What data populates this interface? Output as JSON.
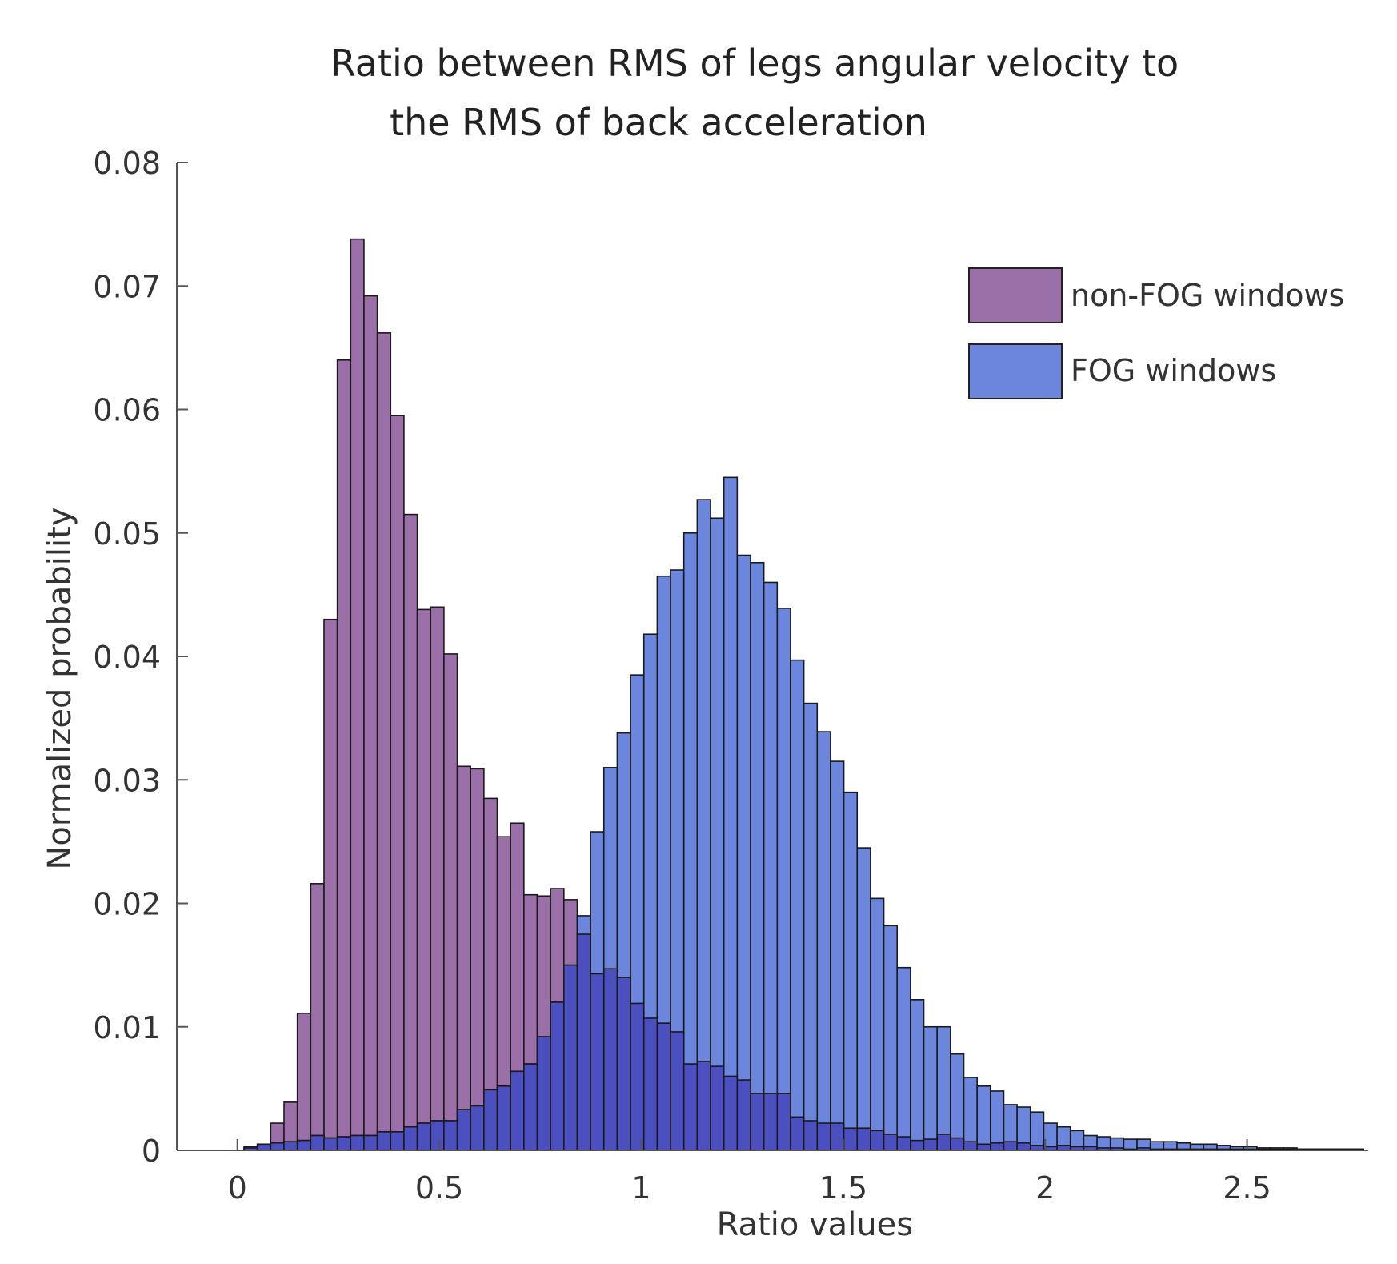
{
  "chart_data": {
    "type": "bar",
    "title": [
      "Ratio between RMS of legs angular velocity to",
      "the RMS of back acceleration"
    ],
    "xlabel": "Ratio values",
    "ylabel": "Normalized probability",
    "xlim": [
      -0.15,
      2.8
    ],
    "ylim": [
      0,
      0.08
    ],
    "xticks": [
      "0",
      "0.5",
      "1",
      "1.5",
      "2",
      "2.5"
    ],
    "yticks": [
      "0",
      "0.01",
      "0.02",
      "0.03",
      "0.04",
      "0.05",
      "0.06",
      "0.07",
      "0.08"
    ],
    "bin_width": 0.033,
    "legend": "top-right",
    "series": [
      {
        "name": "non-FOG windows",
        "color": "#9b6fa8",
        "bins": [
          [
            0.033,
            0.0002
          ],
          [
            0.066,
            0.0005
          ],
          [
            0.099,
            0.0022
          ],
          [
            0.132,
            0.0039
          ],
          [
            0.165,
            0.0111
          ],
          [
            0.198,
            0.0216
          ],
          [
            0.231,
            0.043
          ],
          [
            0.264,
            0.064
          ],
          [
            0.297,
            0.0738
          ],
          [
            0.33,
            0.0692
          ],
          [
            0.363,
            0.0662
          ],
          [
            0.396,
            0.0595
          ],
          [
            0.429,
            0.0515
          ],
          [
            0.462,
            0.0438
          ],
          [
            0.495,
            0.044
          ],
          [
            0.528,
            0.0402
          ],
          [
            0.561,
            0.0311
          ],
          [
            0.594,
            0.0309
          ],
          [
            0.627,
            0.0285
          ],
          [
            0.66,
            0.0254
          ],
          [
            0.693,
            0.0265
          ],
          [
            0.726,
            0.0207
          ],
          [
            0.759,
            0.0206
          ],
          [
            0.792,
            0.0212
          ],
          [
            0.825,
            0.0203
          ],
          [
            0.858,
            0.0175
          ],
          [
            0.891,
            0.0143
          ],
          [
            0.924,
            0.0147
          ],
          [
            0.957,
            0.014
          ],
          [
            0.99,
            0.0119
          ],
          [
            1.023,
            0.0107
          ],
          [
            1.056,
            0.0103
          ],
          [
            1.089,
            0.0096
          ],
          [
            1.122,
            0.007
          ],
          [
            1.155,
            0.0072
          ],
          [
            1.188,
            0.0068
          ],
          [
            1.221,
            0.006
          ],
          [
            1.254,
            0.0057
          ],
          [
            1.287,
            0.0046
          ],
          [
            1.32,
            0.0046
          ],
          [
            1.353,
            0.0046
          ],
          [
            1.386,
            0.0027
          ],
          [
            1.419,
            0.0024
          ],
          [
            1.452,
            0.0022
          ],
          [
            1.485,
            0.0022
          ],
          [
            1.518,
            0.0018
          ],
          [
            1.551,
            0.0018
          ],
          [
            1.584,
            0.0016
          ],
          [
            1.617,
            0.0013
          ],
          [
            1.65,
            0.0011
          ],
          [
            1.683,
            0.0008
          ],
          [
            1.716,
            0.0009
          ],
          [
            1.749,
            0.0013
          ],
          [
            1.782,
            0.001
          ],
          [
            1.815,
            0.0007
          ],
          [
            1.848,
            0.0005
          ],
          [
            1.881,
            0.0006
          ],
          [
            1.914,
            0.0007
          ],
          [
            1.947,
            0.0006
          ],
          [
            1.98,
            0.0004
          ],
          [
            2.013,
            0.0003
          ],
          [
            2.046,
            0.0004
          ],
          [
            2.079,
            0.0003
          ],
          [
            2.112,
            0.0003
          ],
          [
            2.145,
            0.0002
          ],
          [
            2.178,
            0.0002
          ],
          [
            2.211,
            0.0001
          ],
          [
            2.244,
            0.0002
          ],
          [
            2.277,
            0.0001
          ],
          [
            2.31,
            0.0001
          ],
          [
            2.343,
            0.0001
          ],
          [
            2.376,
            0.0001
          ],
          [
            2.409,
            0.0001
          ],
          [
            2.442,
            0.0001
          ],
          [
            2.475,
            0.0001
          ],
          [
            2.508,
            0.0001
          ],
          [
            2.541,
            0.0001
          ],
          [
            2.574,
            0.0001
          ],
          [
            2.607,
            0.0001
          ],
          [
            2.64,
            0.0001
          ],
          [
            2.673,
            0.0001
          ],
          [
            2.706,
            0.0001
          ],
          [
            2.739,
            0.0001
          ],
          [
            2.772,
            0.0001
          ]
        ]
      },
      {
        "name": "FOG windows",
        "color": "#6b86dc",
        "bins": [
          [
            0.033,
            0.0003
          ],
          [
            0.066,
            0.0005
          ],
          [
            0.099,
            0.0006
          ],
          [
            0.132,
            0.0007
          ],
          [
            0.165,
            0.0008
          ],
          [
            0.198,
            0.0012
          ],
          [
            0.231,
            0.001
          ],
          [
            0.264,
            0.0011
          ],
          [
            0.297,
            0.0012
          ],
          [
            0.33,
            0.0012
          ],
          [
            0.363,
            0.0015
          ],
          [
            0.396,
            0.0015
          ],
          [
            0.429,
            0.0019
          ],
          [
            0.462,
            0.0022
          ],
          [
            0.495,
            0.0024
          ],
          [
            0.528,
            0.0024
          ],
          [
            0.561,
            0.0033
          ],
          [
            0.594,
            0.0036
          ],
          [
            0.627,
            0.0049
          ],
          [
            0.66,
            0.0052
          ],
          [
            0.693,
            0.0064
          ],
          [
            0.726,
            0.007
          ],
          [
            0.759,
            0.0092
          ],
          [
            0.792,
            0.012
          ],
          [
            0.825,
            0.015
          ],
          [
            0.858,
            0.019
          ],
          [
            0.891,
            0.0258
          ],
          [
            0.924,
            0.031
          ],
          [
            0.957,
            0.0338
          ],
          [
            0.99,
            0.0385
          ],
          [
            1.023,
            0.0418
          ],
          [
            1.056,
            0.0465
          ],
          [
            1.089,
            0.047
          ],
          [
            1.122,
            0.05
          ],
          [
            1.155,
            0.0527
          ],
          [
            1.188,
            0.0512
          ],
          [
            1.221,
            0.0545
          ],
          [
            1.254,
            0.0482
          ],
          [
            1.287,
            0.0476
          ],
          [
            1.32,
            0.046
          ],
          [
            1.353,
            0.0439
          ],
          [
            1.386,
            0.0397
          ],
          [
            1.419,
            0.0362
          ],
          [
            1.452,
            0.0339
          ],
          [
            1.485,
            0.0315
          ],
          [
            1.518,
            0.029
          ],
          [
            1.551,
            0.0245
          ],
          [
            1.584,
            0.0204
          ],
          [
            1.617,
            0.0182
          ],
          [
            1.65,
            0.0148
          ],
          [
            1.683,
            0.0122
          ],
          [
            1.716,
            0.01
          ],
          [
            1.749,
            0.01
          ],
          [
            1.782,
            0.0078
          ],
          [
            1.815,
            0.0059
          ],
          [
            1.848,
            0.0052
          ],
          [
            1.881,
            0.0048
          ],
          [
            1.914,
            0.0037
          ],
          [
            1.947,
            0.0035
          ],
          [
            1.98,
            0.0031
          ],
          [
            2.013,
            0.0022
          ],
          [
            2.046,
            0.0019
          ],
          [
            2.079,
            0.0016
          ],
          [
            2.112,
            0.0012
          ],
          [
            2.145,
            0.0011
          ],
          [
            2.178,
            0.001
          ],
          [
            2.211,
            0.0009
          ],
          [
            2.244,
            0.0009
          ],
          [
            2.277,
            0.0007
          ],
          [
            2.31,
            0.0007
          ],
          [
            2.343,
            0.0006
          ],
          [
            2.376,
            0.0005
          ],
          [
            2.409,
            0.0005
          ],
          [
            2.442,
            0.0004
          ],
          [
            2.475,
            0.0003
          ],
          [
            2.508,
            0.0003
          ],
          [
            2.541,
            0.0002
          ],
          [
            2.574,
            0.0002
          ],
          [
            2.607,
            0.0002
          ],
          [
            2.64,
            0.0001
          ],
          [
            2.673,
            0.0001
          ],
          [
            2.706,
            0.0001
          ],
          [
            2.739,
            0.0001
          ],
          [
            2.772,
            0.0001
          ]
        ]
      }
    ],
    "overlap_color": "#4b4fc0"
  }
}
